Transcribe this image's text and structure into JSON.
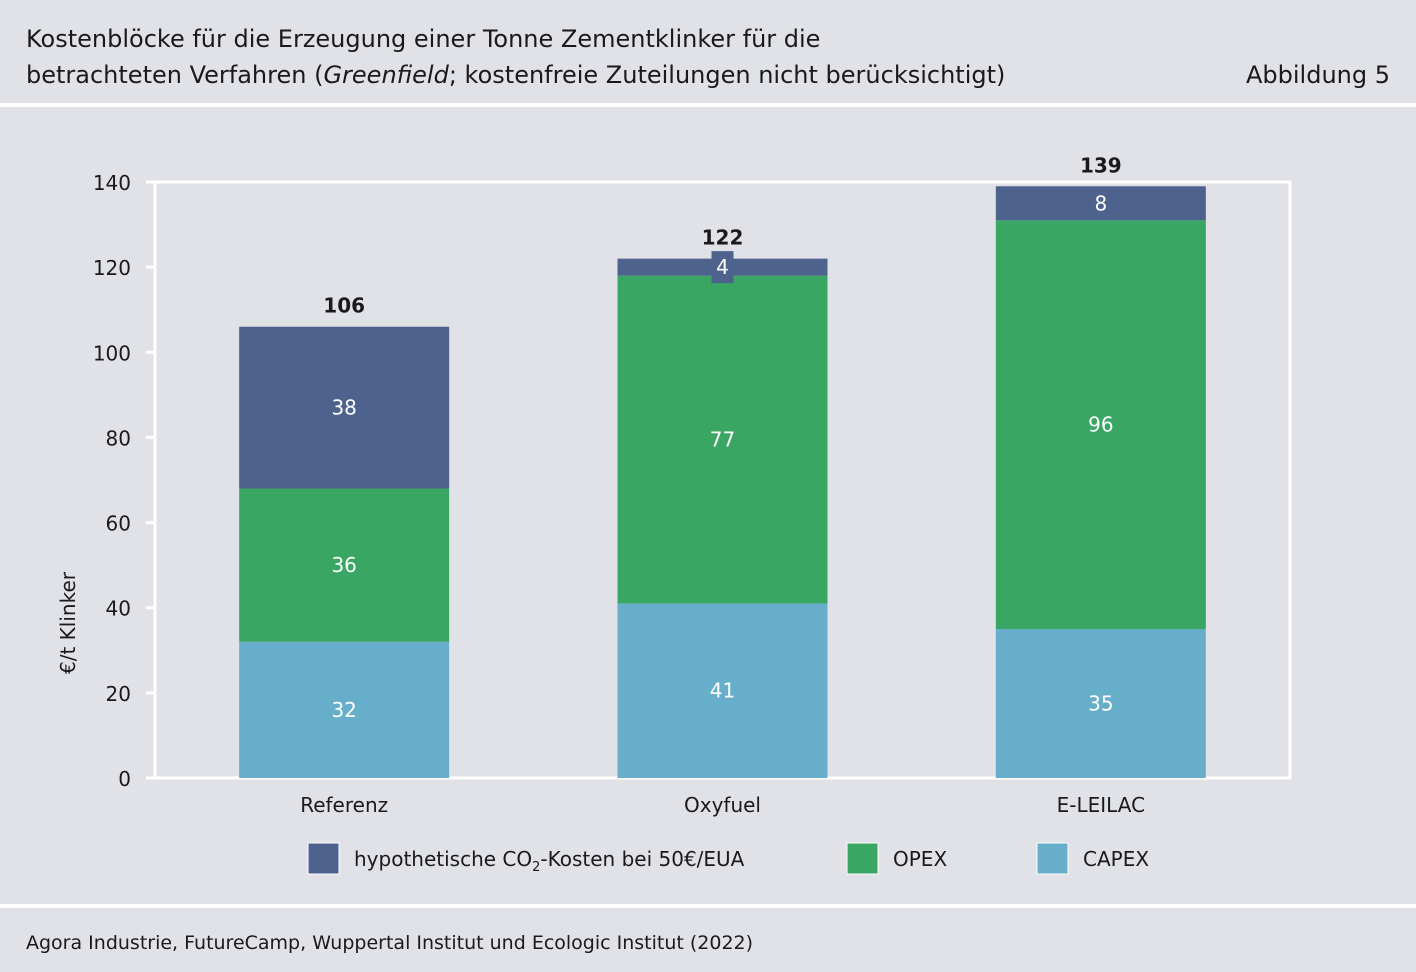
{
  "header": {
    "title_line1": "Kostenblöcke für die Erzeugung einer Tonne Zementklinker für die",
    "title_line2_prefix": "betrachteten Verfahren (",
    "title_line2_italic": "Greenfield",
    "title_line2_suffix": "; kostenfreie Zuteilungen nicht berücksichtigt)",
    "figure_label": "Abbildung 5"
  },
  "chart_data": {
    "type": "bar",
    "stacked": true,
    "categories": [
      "Referenz",
      "Oxyfuel",
      "E-LEILAC"
    ],
    "series": [
      {
        "name": "CAPEX",
        "values": [
          32,
          41,
          35
        ],
        "color": "#67aecb"
      },
      {
        "name": "OPEX",
        "values": [
          36,
          77,
          96
        ],
        "color": "#3aa663"
      },
      {
        "name_prefix": "hypothetische CO",
        "name_subscript": "2",
        "name_suffix": "-Kosten bei 50€/EUA",
        "values": [
          38,
          4,
          8
        ],
        "color": "#4e628e"
      }
    ],
    "totals": [
      106,
      122,
      139
    ],
    "ylabel": "€/t Klinker",
    "ylim": [
      0,
      140
    ],
    "yticks": [
      0,
      20,
      40,
      60,
      80,
      100,
      120,
      140
    ],
    "grid": false,
    "legend_position": "bottom",
    "legend_order": [
      2,
      1,
      0
    ]
  },
  "footer": {
    "source": "Agora Industrie, FutureCamp, Wuppertal Institut und Ecologic Institut (2022)"
  }
}
